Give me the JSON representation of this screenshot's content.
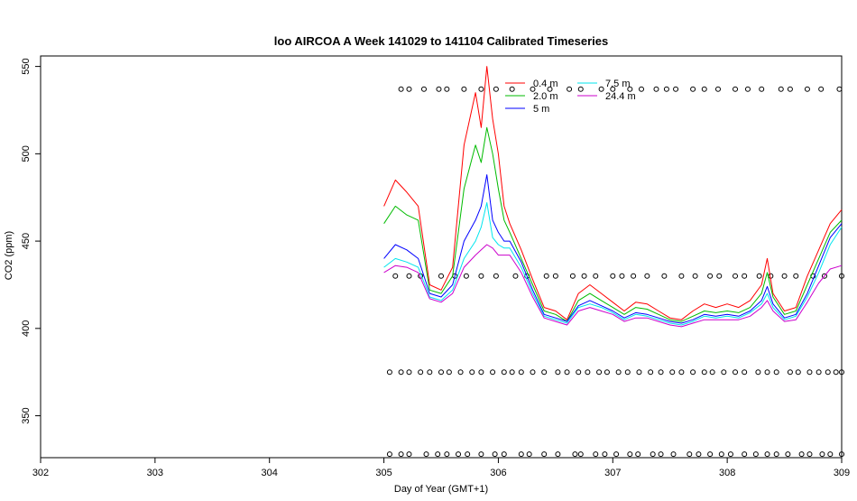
{
  "chart_data": {
    "type": "line",
    "title": "loo AIRCOA A  Week 141029 to 141104  Calibrated Timeseries",
    "xlabel": "Day of Year (GMT+1)",
    "ylabel": "CO2 (ppm)",
    "xlim": [
      302,
      309
    ],
    "ylim": [
      326,
      556
    ],
    "x_ticks": [
      302,
      303,
      304,
      305,
      306,
      307,
      308,
      309
    ],
    "y_ticks": [
      350,
      400,
      450,
      500,
      550
    ],
    "legend_position": "top-right",
    "series": [
      {
        "name": "0.4 m",
        "color": "#ff0000",
        "x": [
          305.0,
          305.1,
          305.2,
          305.3,
          305.4,
          305.5,
          305.6,
          305.7,
          305.8,
          305.85,
          305.9,
          305.95,
          306.0,
          306.05,
          306.1,
          306.2,
          306.3,
          306.4,
          306.5,
          306.6,
          306.7,
          306.8,
          306.9,
          307.0,
          307.1,
          307.2,
          307.3,
          307.4,
          307.5,
          307.6,
          307.7,
          307.8,
          307.9,
          308.0,
          308.1,
          308.2,
          308.3,
          308.35,
          308.4,
          308.5,
          308.6,
          308.7,
          308.8,
          308.9,
          309.0
        ],
        "y": [
          470,
          485,
          478,
          470,
          425,
          422,
          435,
          505,
          535,
          515,
          550,
          520,
          500,
          470,
          460,
          445,
          428,
          412,
          410,
          405,
          420,
          425,
          420,
          415,
          410,
          415,
          414,
          410,
          406,
          405,
          410,
          414,
          412,
          414,
          412,
          416,
          425,
          440,
          420,
          410,
          412,
          430,
          445,
          460,
          468
        ]
      },
      {
        "name": "2.0 m",
        "color": "#00bb00",
        "x": [
          305.0,
          305.1,
          305.2,
          305.3,
          305.4,
          305.5,
          305.6,
          305.7,
          305.8,
          305.85,
          305.9,
          305.95,
          306.0,
          306.05,
          306.1,
          306.2,
          306.3,
          306.4,
          306.5,
          306.6,
          306.7,
          306.8,
          306.9,
          307.0,
          307.1,
          307.2,
          307.3,
          307.4,
          307.5,
          307.6,
          307.7,
          307.8,
          307.9,
          308.0,
          308.1,
          308.2,
          308.3,
          308.35,
          308.4,
          308.5,
          308.6,
          308.7,
          308.8,
          308.9,
          309.0
        ],
        "y": [
          460,
          470,
          465,
          462,
          422,
          420,
          430,
          480,
          505,
          495,
          515,
          500,
          480,
          462,
          455,
          440,
          425,
          410,
          408,
          404,
          416,
          420,
          416,
          412,
          408,
          412,
          411,
          408,
          405,
          404,
          407,
          410,
          409,
          410,
          409,
          412,
          420,
          432,
          418,
          408,
          410,
          425,
          440,
          455,
          462
        ]
      },
      {
        "name": "5 m",
        "color": "#0000ff",
        "x": [
          305.0,
          305.1,
          305.2,
          305.3,
          305.4,
          305.5,
          305.6,
          305.7,
          305.8,
          305.85,
          305.9,
          305.95,
          306.0,
          306.05,
          306.1,
          306.2,
          306.3,
          306.4,
          306.5,
          306.6,
          306.7,
          306.8,
          306.9,
          307.0,
          307.1,
          307.2,
          307.3,
          307.4,
          307.5,
          307.6,
          307.7,
          307.8,
          307.9,
          308.0,
          308.1,
          308.2,
          308.3,
          308.35,
          308.4,
          308.5,
          308.6,
          308.7,
          308.8,
          308.9,
          309.0
        ],
        "y": [
          440,
          448,
          445,
          440,
          420,
          418,
          425,
          450,
          462,
          470,
          488,
          462,
          455,
          450,
          450,
          438,
          422,
          408,
          406,
          404,
          413,
          416,
          413,
          410,
          406,
          409,
          408,
          406,
          404,
          403,
          405,
          408,
          407,
          408,
          407,
          410,
          416,
          424,
          414,
          406,
          408,
          420,
          436,
          452,
          460
        ]
      },
      {
        "name": "7.5 m",
        "color": "#00e5ee",
        "x": [
          305.0,
          305.1,
          305.2,
          305.3,
          305.4,
          305.5,
          305.6,
          305.7,
          305.8,
          305.85,
          305.9,
          305.95,
          306.0,
          306.05,
          306.1,
          306.2,
          306.3,
          306.4,
          306.5,
          306.6,
          306.7,
          306.8,
          306.9,
          307.0,
          307.1,
          307.2,
          307.3,
          307.4,
          307.5,
          307.6,
          307.7,
          307.8,
          307.9,
          308.0,
          308.1,
          308.2,
          308.3,
          308.35,
          308.4,
          308.5,
          308.6,
          308.7,
          308.8,
          308.9,
          309.0
        ],
        "y": [
          435,
          440,
          438,
          435,
          418,
          416,
          422,
          440,
          450,
          458,
          472,
          452,
          448,
          446,
          446,
          435,
          420,
          407,
          405,
          403,
          412,
          414,
          412,
          409,
          405,
          408,
          407,
          405,
          403,
          402,
          404,
          407,
          406,
          407,
          406,
          409,
          414,
          420,
          412,
          405,
          407,
          418,
          432,
          448,
          458
        ]
      },
      {
        "name": "24.4 m",
        "color": "#cc00cc",
        "x": [
          305.0,
          305.1,
          305.2,
          305.3,
          305.4,
          305.5,
          305.6,
          305.7,
          305.8,
          305.85,
          305.9,
          305.95,
          306.0,
          306.05,
          306.1,
          306.2,
          306.3,
          306.4,
          306.5,
          306.6,
          306.7,
          306.8,
          306.9,
          307.0,
          307.1,
          307.2,
          307.3,
          307.4,
          307.5,
          307.6,
          307.7,
          307.8,
          307.9,
          308.0,
          308.1,
          308.2,
          308.3,
          308.35,
          308.4,
          308.5,
          308.6,
          308.7,
          308.8,
          308.9,
          309.0
        ],
        "y": [
          432,
          436,
          435,
          432,
          417,
          415,
          420,
          435,
          442,
          445,
          448,
          446,
          442,
          442,
          442,
          432,
          418,
          406,
          404,
          402,
          410,
          412,
          410,
          408,
          404,
          406,
          406,
          404,
          402,
          401,
          403,
          405,
          405,
          405,
          405,
          407,
          412,
          416,
          410,
          404,
          405,
          415,
          426,
          434,
          436
        ]
      }
    ],
    "marker_rows": [
      {
        "y": 537,
        "x": [
          305.15,
          305.22,
          305.35,
          305.48,
          305.55,
          305.7,
          305.85,
          305.98,
          306.12,
          306.3,
          306.45,
          306.62,
          306.72,
          306.9,
          307.0,
          307.15,
          307.25,
          307.38,
          307.47,
          307.55,
          307.7,
          307.8,
          307.92,
          308.07,
          308.18,
          308.3,
          308.47,
          308.55,
          308.7,
          308.82,
          308.98
        ]
      },
      {
        "y": 430,
        "x": [
          305.1,
          305.22,
          305.32,
          305.5,
          305.62,
          305.72,
          305.85,
          305.98,
          306.15,
          306.25,
          306.42,
          306.5,
          306.65,
          306.75,
          306.85,
          307.0,
          307.08,
          307.18,
          307.3,
          307.45,
          307.6,
          307.72,
          307.85,
          307.93,
          308.07,
          308.15,
          308.28,
          308.38,
          308.5,
          308.6,
          308.75,
          308.85,
          309.0
        ]
      },
      {
        "y": 375,
        "x": [
          305.05,
          305.15,
          305.22,
          305.32,
          305.4,
          305.5,
          305.57,
          305.67,
          305.77,
          305.85,
          305.95,
          306.05,
          306.12,
          306.2,
          306.3,
          306.4,
          306.52,
          306.6,
          306.7,
          306.78,
          306.88,
          306.95,
          307.05,
          307.13,
          307.23,
          307.33,
          307.42,
          307.52,
          307.6,
          307.7,
          307.8,
          307.87,
          307.97,
          308.07,
          308.15,
          308.27,
          308.35,
          308.43,
          308.55,
          308.62,
          308.72,
          308.8,
          308.88,
          308.95,
          309.0
        ]
      },
      {
        "y": 328,
        "x": [
          305.05,
          305.15,
          305.22,
          305.37,
          305.47,
          305.55,
          305.65,
          305.73,
          305.85,
          305.97,
          306.05,
          306.2,
          306.27,
          306.4,
          306.52,
          306.67,
          306.72,
          306.85,
          306.93,
          307.03,
          307.15,
          307.22,
          307.35,
          307.42,
          307.53,
          307.67,
          307.75,
          307.85,
          307.95,
          308.03,
          308.15,
          308.25,
          308.35,
          308.43,
          308.53,
          308.65,
          308.72,
          308.83,
          308.9,
          309.0
        ]
      }
    ]
  }
}
